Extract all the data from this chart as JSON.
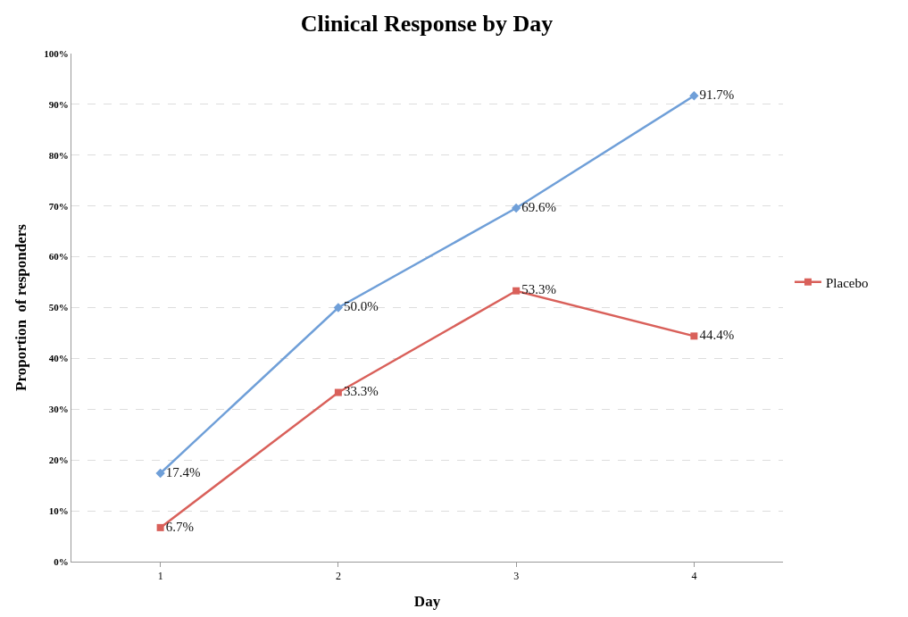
{
  "chart_data": {
    "type": "line",
    "title": "Clinical Response by Day",
    "xlabel": "Day",
    "ylabel": "Proportion  of responders",
    "categories": [
      "1",
      "2",
      "3",
      "4"
    ],
    "series": [
      {
        "color": "#6f9fd8",
        "marker": "diamond",
        "values": [
          17.4,
          50.0,
          69.6,
          91.7
        ],
        "value_labels": [
          "17.4%",
          "50.0%",
          "69.6%",
          "91.7%"
        ]
      },
      {
        "name": "Placebo",
        "color": "#d9605a",
        "marker": "square",
        "values": [
          6.7,
          33.3,
          53.3,
          44.4
        ],
        "value_labels": [
          "6.7%",
          "33.3%",
          "53.3%",
          "44.4%"
        ]
      }
    ],
    "ylim": [
      0,
      100
    ],
    "yticks": [
      {
        "value": 0,
        "label": "0%"
      },
      {
        "value": 10,
        "label": "10%"
      },
      {
        "value": 20,
        "label": "20%"
      },
      {
        "value": 30,
        "label": "30%"
      },
      {
        "value": 40,
        "label": "40%"
      },
      {
        "value": 50,
        "label": "50%"
      },
      {
        "value": 60,
        "label": "60%"
      },
      {
        "value": 70,
        "label": "70%"
      },
      {
        "value": 80,
        "label": "80%"
      },
      {
        "value": 90,
        "label": "90%"
      },
      {
        "value": 100,
        "label": "100%"
      }
    ],
    "grid": "y",
    "legend": "right"
  }
}
